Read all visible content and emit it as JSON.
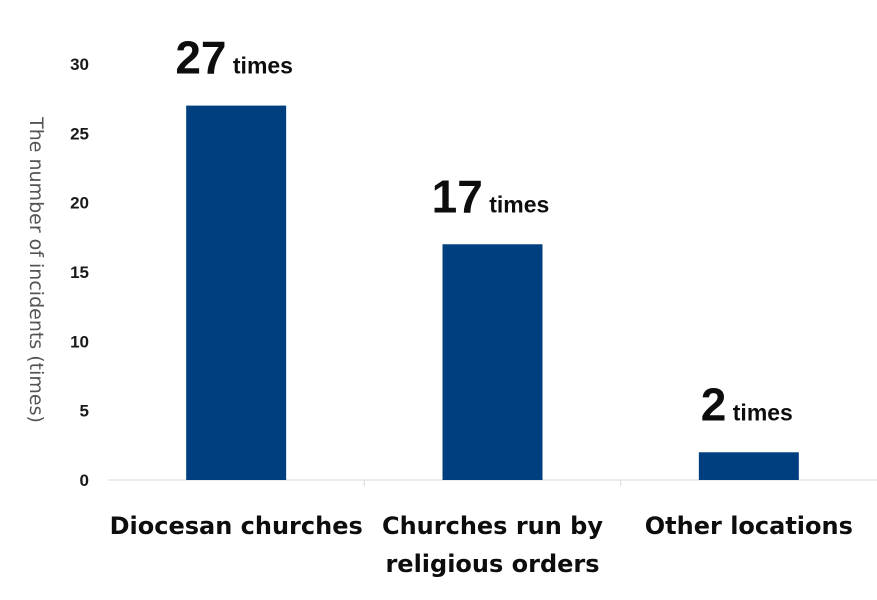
{
  "chart_data": {
    "type": "bar",
    "categories": [
      [
        "Diocesan churches"
      ],
      [
        "Churches run by",
        "religious orders"
      ],
      [
        "Other locations"
      ]
    ],
    "values": [
      27,
      17,
      2
    ],
    "value_labels": [
      {
        "number": "27",
        "unit": "times"
      },
      {
        "number": "17",
        "unit": "times"
      },
      {
        "number": "2",
        "unit": "times"
      }
    ],
    "title": "",
    "xlabel": "",
    "ylabel": "The number of incidents (times)",
    "ylim": [
      0,
      30
    ],
    "yticks": [
      "0",
      "5",
      "10",
      "15",
      "20",
      "25",
      "30"
    ],
    "grid": false,
    "bar_color": "#003f7f"
  }
}
